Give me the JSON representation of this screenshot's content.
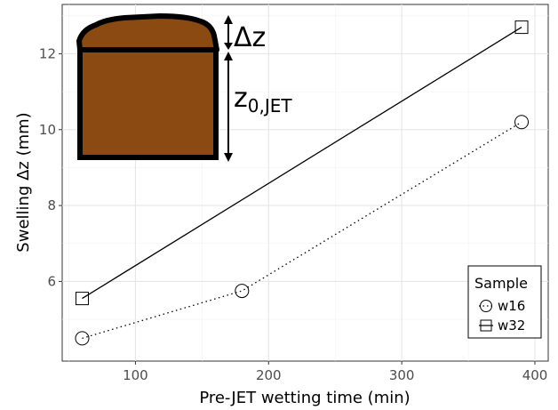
{
  "chart_data": {
    "type": "line",
    "title": "",
    "xlabel": "Pre-JET wetting time (min)",
    "ylabel": "Swelling Δz (mm)",
    "xlim": [
      45,
      410
    ],
    "ylim": [
      3.9,
      13.3
    ],
    "xticks": [
      100,
      200,
      300,
      400
    ],
    "yticks": [
      6,
      8,
      10,
      12
    ],
    "grid": true,
    "legend": {
      "title": "Sample",
      "placement": "bottom-right"
    },
    "series": [
      {
        "name": "w16",
        "linestyle": "dotted",
        "marker": "circle",
        "x": [
          60,
          180,
          390
        ],
        "y": [
          4.5,
          5.75,
          10.2
        ]
      },
      {
        "name": "w32",
        "linestyle": "solid",
        "marker": "square",
        "x": [
          60,
          390
        ],
        "y": [
          5.55,
          12.7
        ]
      }
    ],
    "inset": {
      "fill_color": "#8a4a12",
      "delta_label": "Δz",
      "z0_main": "z",
      "z0_sub": "0,JET"
    }
  }
}
